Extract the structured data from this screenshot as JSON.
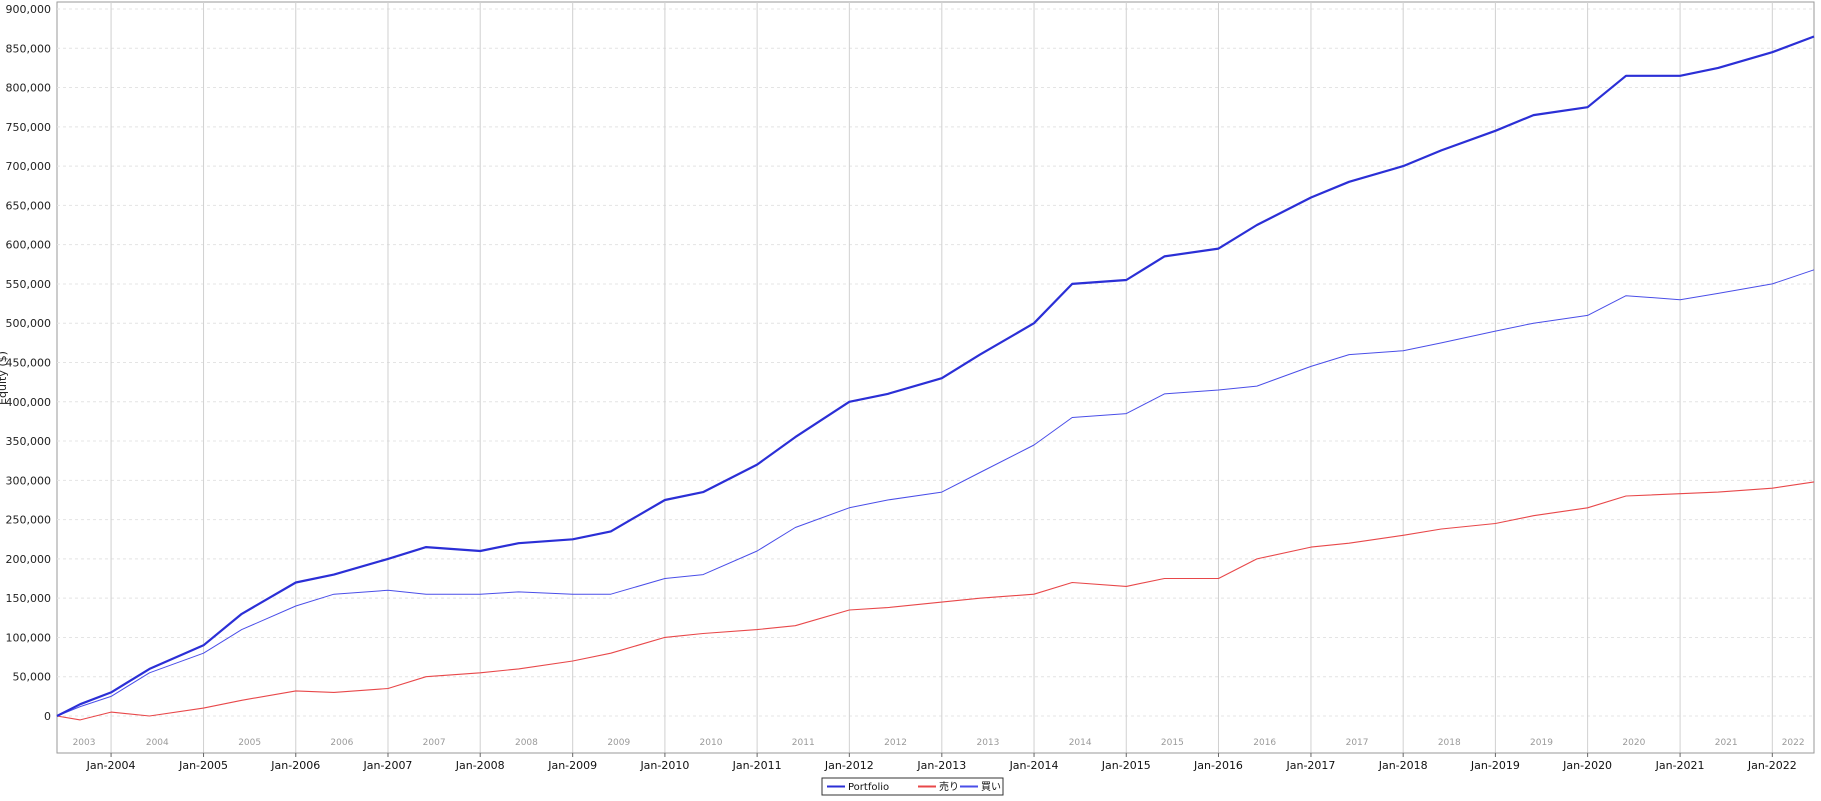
{
  "chart_data": {
    "type": "line",
    "title": "",
    "xlabel": "",
    "ylabel": "Equity ($)",
    "ylim": [
      -40000,
      900000
    ],
    "y_ticks": [
      "0",
      "50,000",
      "100,000",
      "150,000",
      "200,000",
      "250,000",
      "300,000",
      "350,000",
      "400,000",
      "450,000",
      "500,000",
      "550,000",
      "600,000",
      "650,000",
      "700,000",
      "750,000",
      "800,000",
      "850,000",
      "900,000"
    ],
    "y_tick_values": [
      0,
      50000,
      100000,
      150000,
      200000,
      250000,
      300000,
      350000,
      400000,
      450000,
      500000,
      550000,
      600000,
      650000,
      700000,
      750000,
      800000,
      850000,
      900000
    ],
    "xlim": [
      "2003-06-01",
      "2022-06-15"
    ],
    "x_ticks": [
      "Jan-2004",
      "Jan-2005",
      "Jan-2006",
      "Jan-2007",
      "Jan-2008",
      "Jan-2009",
      "Jan-2010",
      "Jan-2011",
      "Jan-2012",
      "Jan-2013",
      "Jan-2014",
      "Jan-2015",
      "Jan-2016",
      "Jan-2017",
      "Jan-2018",
      "Jan-2019",
      "Jan-2020",
      "Jan-2021",
      "Jan-2022"
    ],
    "x_tick_values": [
      "2004-01-01",
      "2005-01-01",
      "2006-01-01",
      "2007-01-01",
      "2008-01-01",
      "2009-01-01",
      "2010-01-01",
      "2011-01-01",
      "2012-01-01",
      "2013-01-01",
      "2014-01-01",
      "2015-01-01",
      "2016-01-01",
      "2017-01-01",
      "2018-01-01",
      "2019-01-01",
      "2020-01-01",
      "2021-01-01",
      "2022-01-01"
    ],
    "year_bands": [
      "2003",
      "2004",
      "2005",
      "2006",
      "2007",
      "2008",
      "2009",
      "2010",
      "2011",
      "2012",
      "2013",
      "2014",
      "2015",
      "2016",
      "2017",
      "2018",
      "2019",
      "2020",
      "2021",
      "2022"
    ],
    "grid": true,
    "legend_position": "bottom-center",
    "x": [
      "2003-06-01",
      "2003-09-01",
      "2004-01-01",
      "2004-06-01",
      "2005-01-01",
      "2005-06-01",
      "2006-01-01",
      "2006-06-01",
      "2007-01-01",
      "2007-06-01",
      "2008-01-01",
      "2008-06-01",
      "2009-01-01",
      "2009-06-01",
      "2010-01-01",
      "2010-06-01",
      "2011-01-01",
      "2011-06-01",
      "2012-01-01",
      "2012-06-01",
      "2013-01-01",
      "2013-06-01",
      "2014-01-01",
      "2014-06-01",
      "2015-01-01",
      "2015-06-01",
      "2016-01-01",
      "2016-06-01",
      "2017-01-01",
      "2017-06-01",
      "2018-01-01",
      "2018-06-01",
      "2019-01-01",
      "2019-06-01",
      "2020-01-01",
      "2020-06-01",
      "2021-01-01",
      "2021-06-01",
      "2022-01-01",
      "2022-06-15"
    ],
    "series": [
      {
        "name": "Portfolio",
        "color": "#2b2fd6",
        "width": 2.2,
        "values": [
          0,
          15000,
          30000,
          60000,
          90000,
          130000,
          170000,
          180000,
          200000,
          215000,
          210000,
          220000,
          225000,
          235000,
          275000,
          285000,
          320000,
          355000,
          400000,
          410000,
          430000,
          460000,
          500000,
          550000,
          555000,
          585000,
          595000,
          625000,
          660000,
          680000,
          700000,
          720000,
          745000,
          765000,
          775000,
          815000,
          815000,
          825000,
          845000,
          865000
        ]
      },
      {
        "name": "売り",
        "color": "#e8484a",
        "width": 1.1,
        "values": [
          0,
          -5000,
          5000,
          0,
          10000,
          20000,
          32000,
          30000,
          35000,
          50000,
          55000,
          60000,
          70000,
          80000,
          100000,
          105000,
          110000,
          115000,
          135000,
          138000,
          145000,
          150000,
          155000,
          170000,
          165000,
          175000,
          175000,
          200000,
          215000,
          220000,
          230000,
          238000,
          245000,
          255000,
          265000,
          280000,
          283000,
          285000,
          290000,
          298000
        ]
      },
      {
        "name": "買い",
        "color": "#4a4ee8",
        "width": 1.0,
        "values": [
          0,
          12000,
          25000,
          55000,
          80000,
          110000,
          140000,
          155000,
          160000,
          155000,
          155000,
          158000,
          155000,
          155000,
          175000,
          180000,
          210000,
          240000,
          265000,
          275000,
          285000,
          310000,
          345000,
          380000,
          385000,
          410000,
          415000,
          420000,
          445000,
          460000,
          465000,
          475000,
          490000,
          500000,
          510000,
          535000,
          530000,
          538000,
          550000,
          568000
        ]
      }
    ]
  }
}
